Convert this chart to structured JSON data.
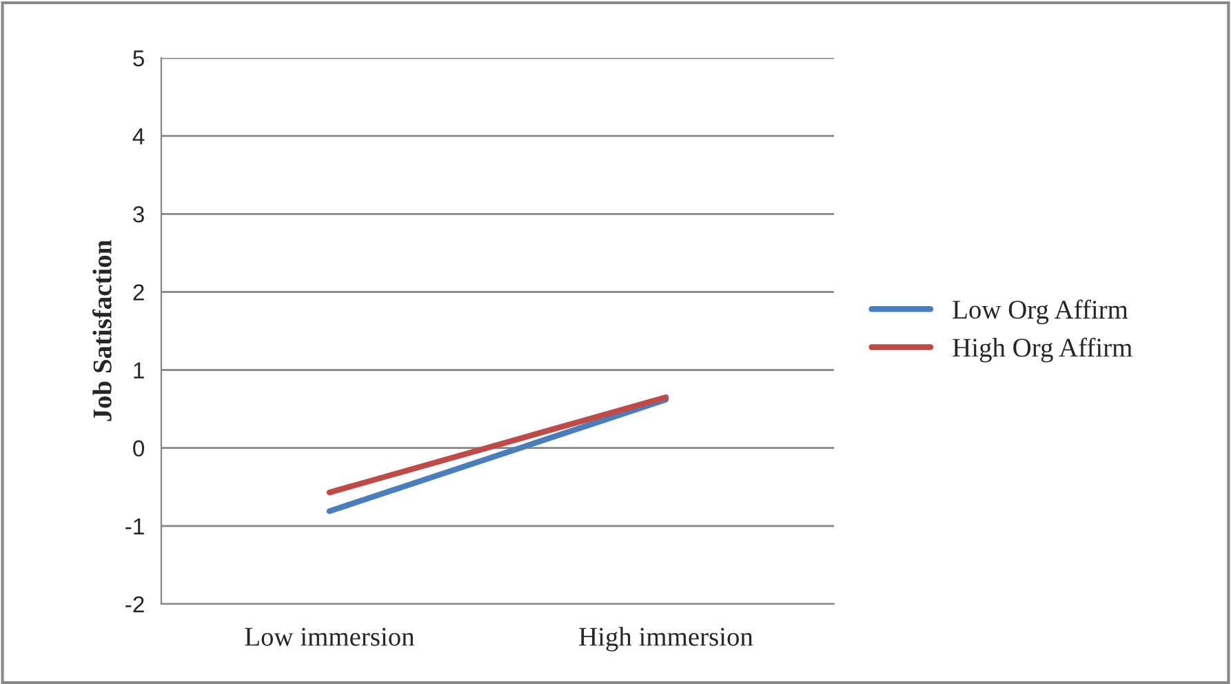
{
  "chart_data": {
    "type": "line",
    "ylabel": "Job Satisfaction",
    "categories": [
      "Low immersion",
      "High immersion"
    ],
    "series": [
      {
        "name": "Low Org Affirm",
        "color": "#4a7ebb",
        "values": [
          -0.81,
          0.62
        ]
      },
      {
        "name": "High Org Affirm",
        "color": "#be4b48",
        "values": [
          -0.57,
          0.65
        ]
      }
    ],
    "ylim": [
      -2,
      5
    ],
    "yticks": [
      -2,
      -1,
      0,
      1,
      2,
      3,
      4,
      5
    ],
    "grid": "y",
    "legend": "right",
    "marker": "none",
    "line_style": "solid"
  }
}
